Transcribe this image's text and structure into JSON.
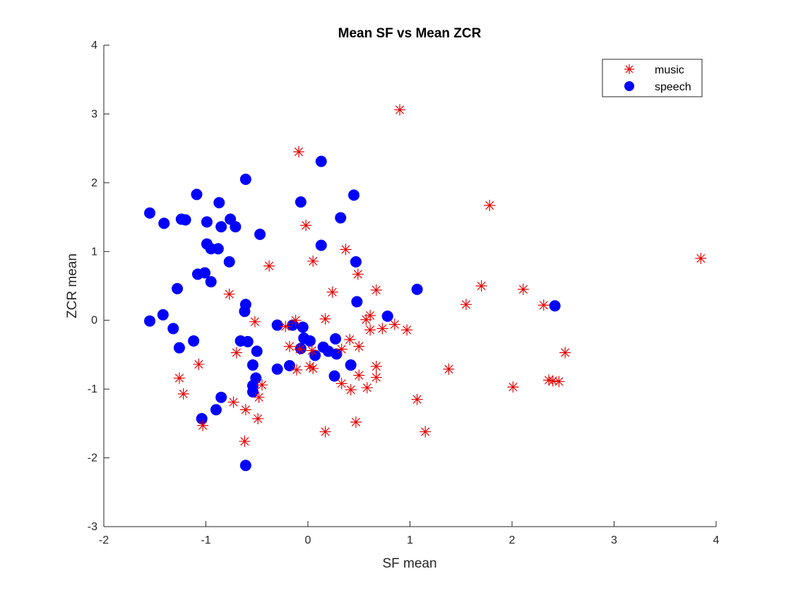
{
  "chart_data": {
    "type": "scatter",
    "title": "Mean SF vs Mean ZCR",
    "xlabel": "SF mean",
    "ylabel": "ZCR mean",
    "xlim": [
      -2,
      4
    ],
    "ylim": [
      -3,
      4
    ],
    "xticks": [
      -2,
      -1,
      0,
      1,
      2,
      3,
      4
    ],
    "yticks": [
      -3,
      -2,
      -1,
      0,
      1,
      2,
      3,
      4
    ],
    "grid": false,
    "legend_position": "top-right",
    "series": [
      {
        "name": "music",
        "marker": "asterisk",
        "color": "#e60000",
        "points": [
          [
            0.9,
            3.06
          ],
          [
            -0.09,
            2.45
          ],
          [
            1.78,
            1.67
          ],
          [
            3.85,
            0.9
          ],
          [
            -0.02,
            1.38
          ],
          [
            0.37,
            1.03
          ],
          [
            -0.38,
            0.79
          ],
          [
            0.05,
            0.86
          ],
          [
            0.49,
            0.67
          ],
          [
            0.67,
            0.44
          ],
          [
            0.24,
            0.41
          ],
          [
            -0.77,
            0.38
          ],
          [
            1.7,
            0.5
          ],
          [
            2.11,
            0.45
          ],
          [
            1.55,
            0.23
          ],
          [
            2.31,
            0.22
          ],
          [
            0.17,
            0.02
          ],
          [
            -0.12,
            0.0
          ],
          [
            -0.52,
            -0.02
          ],
          [
            0.57,
            0.01
          ],
          [
            0.61,
            0.07
          ],
          [
            0.61,
            -0.14
          ],
          [
            0.73,
            -0.12
          ],
          [
            0.85,
            -0.06
          ],
          [
            0.97,
            -0.14
          ],
          [
            -0.22,
            -0.09
          ],
          [
            -0.18,
            -0.38
          ],
          [
            -0.08,
            -0.42
          ],
          [
            0.04,
            -0.44
          ],
          [
            0.33,
            -0.42
          ],
          [
            0.41,
            -0.28
          ],
          [
            0.5,
            -0.38
          ],
          [
            -0.7,
            -0.47
          ],
          [
            2.52,
            -0.47
          ],
          [
            -1.07,
            -0.64
          ],
          [
            -1.26,
            -0.84
          ],
          [
            -0.11,
            -0.72
          ],
          [
            0.02,
            -0.67
          ],
          [
            0.05,
            -0.7
          ],
          [
            0.33,
            -0.92
          ],
          [
            0.5,
            -0.8
          ],
          [
            0.67,
            -0.67
          ],
          [
            0.67,
            -0.83
          ],
          [
            0.58,
            -0.98
          ],
          [
            1.38,
            -0.71
          ],
          [
            2.01,
            -0.97
          ],
          [
            2.36,
            -0.87
          ],
          [
            2.4,
            -0.88
          ],
          [
            2.46,
            -0.89
          ],
          [
            -0.45,
            -0.94
          ],
          [
            -0.48,
            -1.12
          ],
          [
            0.42,
            -1.01
          ],
          [
            -1.22,
            -1.07
          ],
          [
            1.07,
            -1.15
          ],
          [
            -0.73,
            -1.19
          ],
          [
            -0.61,
            -1.3
          ],
          [
            -0.49,
            -1.43
          ],
          [
            0.47,
            -1.48
          ],
          [
            -1.03,
            -1.53
          ],
          [
            0.17,
            -1.62
          ],
          [
            1.15,
            -1.62
          ],
          [
            -0.62,
            -1.76
          ]
        ]
      },
      {
        "name": "speech",
        "marker": "filled-circle",
        "color": "#0000ff",
        "points": [
          [
            -0.61,
            2.05
          ],
          [
            0.13,
            2.31
          ],
          [
            -1.09,
            1.83
          ],
          [
            0.45,
            1.82
          ],
          [
            -0.87,
            1.71
          ],
          [
            -0.07,
            1.72
          ],
          [
            -1.55,
            1.56
          ],
          [
            -1.24,
            1.47
          ],
          [
            -1.2,
            1.46
          ],
          [
            -0.99,
            1.43
          ],
          [
            -0.76,
            1.47
          ],
          [
            -0.85,
            1.36
          ],
          [
            -0.71,
            1.36
          ],
          [
            0.32,
            1.49
          ],
          [
            -1.41,
            1.41
          ],
          [
            -0.47,
            1.25
          ],
          [
            -0.99,
            1.11
          ],
          [
            -0.95,
            1.04
          ],
          [
            -0.88,
            1.04
          ],
          [
            0.13,
            1.09
          ],
          [
            -0.77,
            0.85
          ],
          [
            0.47,
            0.85
          ],
          [
            -1.08,
            0.67
          ],
          [
            -1.01,
            0.69
          ],
          [
            -0.95,
            0.56
          ],
          [
            -1.28,
            0.46
          ],
          [
            1.07,
            0.45
          ],
          [
            0.48,
            0.27
          ],
          [
            -0.61,
            0.23
          ],
          [
            -0.62,
            0.13
          ],
          [
            2.42,
            0.21
          ],
          [
            -1.42,
            0.08
          ],
          [
            0.78,
            0.06
          ],
          [
            -1.55,
            -0.01
          ],
          [
            -1.32,
            -0.12
          ],
          [
            -0.3,
            -0.07
          ],
          [
            -0.15,
            -0.07
          ],
          [
            -0.05,
            -0.1
          ],
          [
            -0.04,
            -0.26
          ],
          [
            0.02,
            -0.3
          ],
          [
            0.27,
            -0.27
          ],
          [
            -1.12,
            -0.3
          ],
          [
            -0.66,
            -0.3
          ],
          [
            -0.59,
            -0.31
          ],
          [
            -0.07,
            -0.41
          ],
          [
            0.15,
            -0.39
          ],
          [
            0.2,
            -0.45
          ],
          [
            0.28,
            -0.49
          ],
          [
            0.07,
            -0.51
          ],
          [
            -0.5,
            -0.45
          ],
          [
            -1.26,
            -0.4
          ],
          [
            0.42,
            -0.65
          ],
          [
            -0.54,
            -0.65
          ],
          [
            -0.18,
            -0.66
          ],
          [
            -0.3,
            -0.71
          ],
          [
            0.26,
            -0.81
          ],
          [
            -0.51,
            -0.84
          ],
          [
            -0.54,
            -0.95
          ],
          [
            -0.54,
            -1.04
          ],
          [
            -0.85,
            -1.12
          ],
          [
            -0.9,
            -1.3
          ],
          [
            -1.04,
            -1.43
          ],
          [
            -0.61,
            -2.11
          ]
        ]
      }
    ]
  }
}
